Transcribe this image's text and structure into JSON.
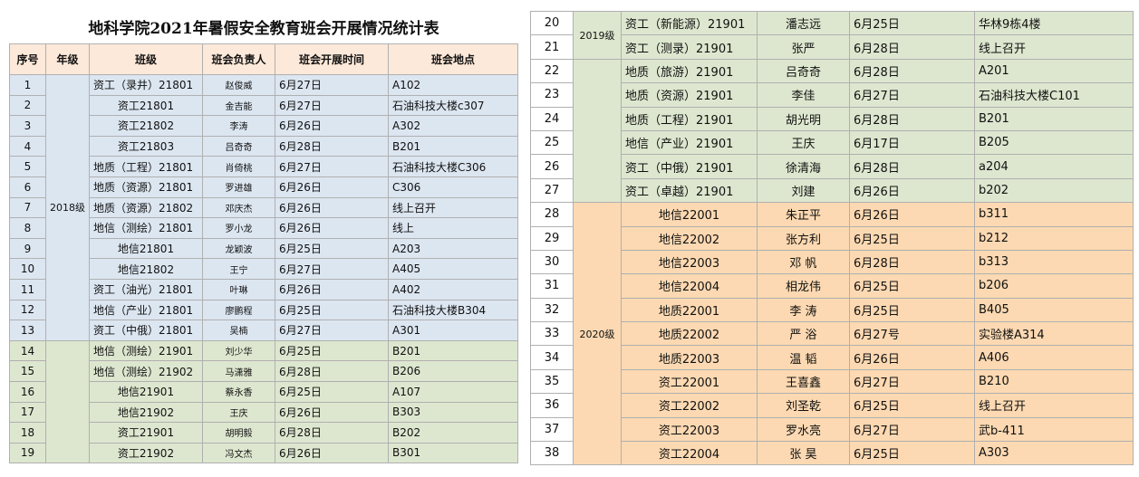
{
  "left": {
    "title": "地科学院2021年暑假安全教育班会开展情况统计表",
    "headers": [
      "序号",
      "年级",
      "班级",
      "班会负责人",
      "班会开展时间",
      "班会地点"
    ],
    "grades": [
      "2018级"
    ],
    "rows": [
      [
        1,
        "资工（录井）21801",
        "赵俊威",
        "6月27日",
        "A102"
      ],
      [
        2,
        "资工21801",
        "金吉能",
        "6月27日",
        "石油科技大楼c307"
      ],
      [
        3,
        "资工21802",
        "李涛",
        "6月26日",
        "A302"
      ],
      [
        4,
        "资工21803",
        "吕奇奇",
        "6月28日",
        "B201"
      ],
      [
        5,
        "地质（工程）21801",
        "肖倚桃",
        "6月27日",
        "石油科技大楼C306"
      ],
      [
        6,
        "地质（资源）21801",
        "罗进雄",
        "6月26日",
        "C306"
      ],
      [
        7,
        "地质（资源）21802",
        "邓庆杰",
        "6月26日",
        "线上召开"
      ],
      [
        8,
        "地信（测绘）21801",
        "罗小龙",
        "6月26日",
        "线上"
      ],
      [
        9,
        "地信21801",
        "龙颖波",
        "6月25日",
        "A203"
      ],
      [
        10,
        "地信21802",
        "王宁",
        "6月27日",
        "A405"
      ],
      [
        11,
        "资工（油光）21801",
        "叶琳",
        "6月26日",
        "A402"
      ],
      [
        12,
        "地信（产业）21801",
        "廖鹏程",
        "6月25日",
        "石油科技大楼B304"
      ],
      [
        13,
        "资工（中俄）21801",
        "吴楠",
        "6月27日",
        "A301"
      ],
      [
        14,
        "地信（测绘）21901",
        "刘少华",
        "6月25日",
        "B201"
      ],
      [
        15,
        "地信（测绘）21902",
        "马潇雅",
        "6月28日",
        "B206"
      ],
      [
        16,
        "地信21901",
        "蔡永香",
        "6月25日",
        "A107"
      ],
      [
        17,
        "地信21902",
        "王庆",
        "6月26日",
        "B303"
      ],
      [
        18,
        "资工21901",
        "胡明毅",
        "6月28日",
        "B202"
      ],
      [
        19,
        "资工21902",
        "冯文杰",
        "6月26日",
        "B301"
      ]
    ]
  },
  "right": {
    "grades": [
      "2019级",
      "2020级"
    ],
    "rows": [
      [
        20,
        "资工（新能源）21901",
        "潘志远",
        "6月25日",
        "华林9栋4楼"
      ],
      [
        21,
        "资工（测录）21901",
        "张严",
        "6月28日",
        "线上召开"
      ],
      [
        22,
        "地质（旅游）21901",
        "吕奇奇",
        "6月28日",
        "A201"
      ],
      [
        23,
        "地质（资源）21901",
        "李佳",
        "6月27日",
        "石油科技大楼C101"
      ],
      [
        24,
        "地质（工程）21901",
        "胡光明",
        "6月28日",
        "B201"
      ],
      [
        25,
        "地信（产业）21901",
        "王庆",
        "6月17日",
        "B205"
      ],
      [
        26,
        "资工（中俄）21901",
        "徐清海",
        "6月28日",
        "a204"
      ],
      [
        27,
        "资工（卓越）21901",
        "刘建",
        "6月26日",
        "b202"
      ],
      [
        28,
        "地信22001",
        "朱正平",
        "6月26日",
        "b311"
      ],
      [
        29,
        "地信22002",
        "张方利",
        "6月25日",
        "b212"
      ],
      [
        30,
        "地信22003",
        "邓 帆",
        "6月28日",
        "b313"
      ],
      [
        31,
        "地信22004",
        "相龙伟",
        "6月25日",
        "b206"
      ],
      [
        32,
        "地质22001",
        "李 涛",
        "6月25日",
        "B405"
      ],
      [
        33,
        "地质22002",
        "严 浴",
        "6月27号",
        "实验楼A314"
      ],
      [
        34,
        "地质22003",
        "温 韬",
        "6月26日",
        "A406"
      ],
      [
        35,
        "资工22001",
        "王喜鑫",
        "6月27日",
        "B210"
      ],
      [
        36,
        "资工22002",
        "刘圣乾",
        "6月25日",
        "线上召开"
      ],
      [
        37,
        "资工22003",
        "罗水亮",
        "6月27日",
        "武b-411"
      ],
      [
        38,
        "资工22004",
        "张 昊",
        "6月25日",
        "A303"
      ]
    ]
  }
}
